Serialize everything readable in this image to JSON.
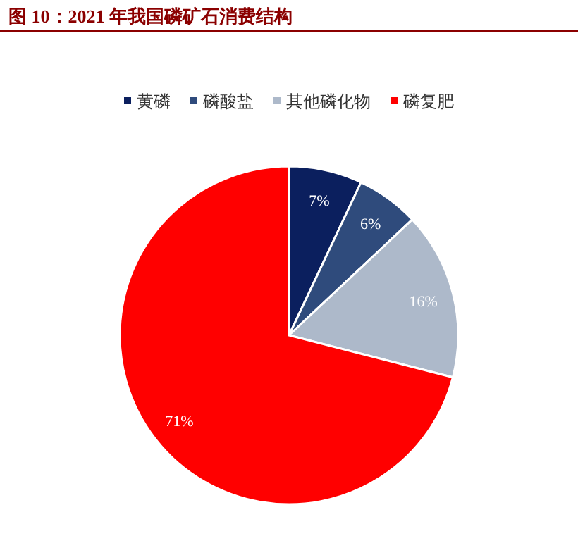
{
  "chart_data": {
    "type": "pie",
    "title": "图 10：2021 年我国磷矿石消费结构",
    "categories": [
      "黄磷",
      "磷酸盐",
      "其他磷化物",
      "磷复肥"
    ],
    "values": [
      7,
      6,
      16,
      71
    ],
    "colors": [
      "#0b1f5e",
      "#2f4b7c",
      "#adb9ca",
      "#ff0000"
    ],
    "value_labels": [
      "7%",
      "6%",
      "16%",
      "71%"
    ],
    "legend": "top"
  }
}
